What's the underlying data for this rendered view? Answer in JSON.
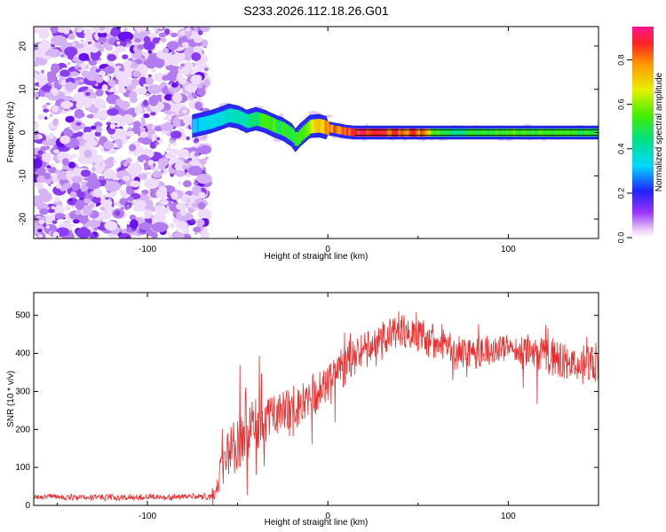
{
  "page_title": "S233.2026.112.18.26.G01",
  "colorbar": {
    "label": "Normalized spectral amplitude",
    "ticks": [
      "0.0",
      "0.2",
      "0.4",
      "0.6",
      "0.8"
    ],
    "tick_values": [
      0.0,
      0.2,
      0.4,
      0.6,
      0.8
    ],
    "range": [
      0,
      0.95
    ]
  },
  "chart_data": [
    {
      "type": "heatmap",
      "title": "",
      "xlabel": "Height of straight line (km)",
      "ylabel": "Frequency (Hz)",
      "xlim": [
        -163,
        150
      ],
      "ylim": [
        -24.5,
        24.5
      ],
      "xticks": [
        -100,
        0,
        100
      ],
      "xtick_labels": [
        "-100",
        "0",
        "100"
      ],
      "yticks": [
        -20,
        -10,
        0,
        10,
        20
      ],
      "ytick_labels": [
        "-20",
        "-10",
        "0",
        "10",
        "20"
      ],
      "noise_region_x": [
        -163,
        -70
      ],
      "ridge": {
        "x": [
          -75,
          -70,
          -65,
          -60,
          -55,
          -50,
          -45,
          -40,
          -35,
          -30,
          -25,
          -20,
          -18,
          -15,
          -10,
          -5,
          0,
          5,
          10,
          15,
          150
        ],
        "freq": [
          1.5,
          2.0,
          2.5,
          3.2,
          4.0,
          3.6,
          2.6,
          3.2,
          2.6,
          1.6,
          0.8,
          -0.6,
          -1.8,
          -0.4,
          1.4,
          1.6,
          1.0,
          0.6,
          0.2,
          0.0,
          0.0
        ]
      },
      "ridge_amplitude": {
        "x": [
          -75,
          -60,
          -45,
          -35,
          -25,
          -15,
          -5,
          0,
          10,
          20,
          50,
          60,
          70,
          80,
          100,
          150
        ],
        "amp": [
          0.35,
          0.4,
          0.45,
          0.6,
          0.55,
          0.6,
          0.75,
          0.85,
          0.95,
          0.95,
          0.9,
          0.6,
          0.45,
          0.55,
          0.6,
          0.55
        ]
      }
    },
    {
      "type": "line",
      "title": "",
      "xlabel": "Height of straight line (km)",
      "ylabel": "SNR (10 * v/v)",
      "xlim": [
        -163,
        150
      ],
      "ylim": [
        0,
        560
      ],
      "xticks": [
        -100,
        0,
        100
      ],
      "xtick_labels": [
        "-100",
        "0",
        "100"
      ],
      "yticks": [
        0,
        100,
        200,
        300,
        400,
        500
      ],
      "ytick_labels": [
        "0",
        "100",
        "200",
        "300",
        "400",
        "500"
      ],
      "color": "#e83232",
      "series": [
        {
          "name": "SNR",
          "x": [
            -163,
            -140,
            -120,
            -100,
            -80,
            -65,
            -62,
            -58,
            -55,
            -50,
            -45,
            -40,
            -35,
            -30,
            -25,
            -20,
            -15,
            -10,
            -5,
            0,
            5,
            10,
            20,
            30,
            40,
            50,
            60,
            70,
            80,
            90,
            100,
            110,
            120,
            130,
            140,
            150
          ],
          "mean": [
            22,
            22,
            21,
            22,
            22,
            24,
            40,
            100,
            140,
            170,
            200,
            215,
            225,
            235,
            245,
            255,
            265,
            285,
            300,
            320,
            345,
            375,
            410,
            440,
            460,
            455,
            430,
            410,
            405,
            410,
            410,
            400,
            390,
            380,
            370,
            375
          ],
          "spread": [
            10,
            10,
            10,
            10,
            10,
            12,
            30,
            70,
            85,
            95,
            100,
            100,
            95,
            90,
            85,
            80,
            80,
            75,
            70,
            70,
            65,
            60,
            55,
            55,
            60,
            60,
            60,
            55,
            50,
            50,
            50,
            55,
            60,
            60,
            60,
            55
          ]
        }
      ]
    }
  ]
}
